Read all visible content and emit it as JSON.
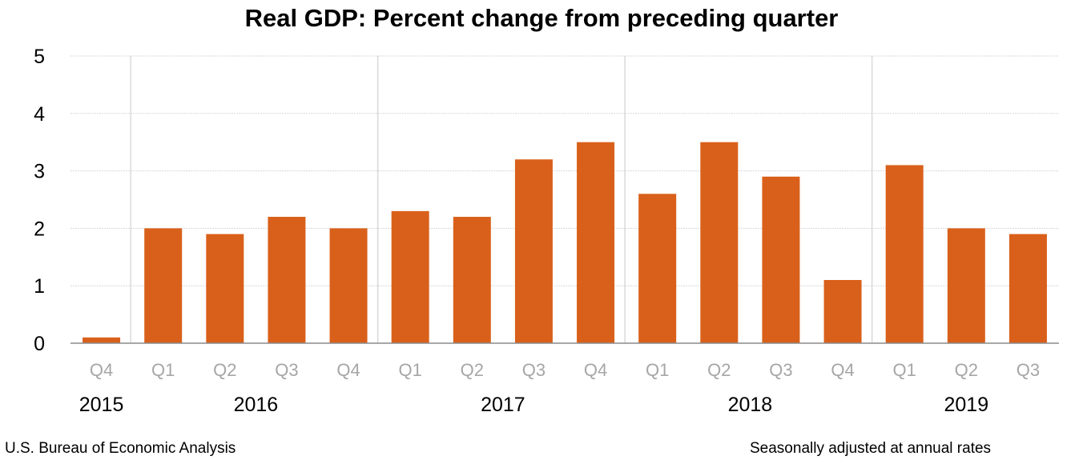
{
  "chart_data": {
    "type": "bar",
    "title": "Real GDP:  Percent change from preceding quarter",
    "categories": [
      "Q4",
      "Q1",
      "Q2",
      "Q3",
      "Q4",
      "Q1",
      "Q2",
      "Q3",
      "Q4",
      "Q1",
      "Q2",
      "Q3",
      "Q4",
      "Q1",
      "Q2",
      "Q3"
    ],
    "years": [
      {
        "label": "2015",
        "quarters": 1
      },
      {
        "label": "2016",
        "quarters": 4
      },
      {
        "label": "2017",
        "quarters": 4
      },
      {
        "label": "2018",
        "quarters": 4
      },
      {
        "label": "2019",
        "quarters": 3
      }
    ],
    "values": [
      0.1,
      2.0,
      1.9,
      2.2,
      2.0,
      2.3,
      2.2,
      3.2,
      3.5,
      2.6,
      3.5,
      2.9,
      1.1,
      3.1,
      2.0,
      1.9
    ],
    "yticks": [
      "0",
      "1",
      "2",
      "3",
      "4",
      "5"
    ],
    "ylim": [
      0,
      5
    ],
    "grid": true,
    "bar_color": "#d9601a",
    "xlabel": "",
    "ylabel": ""
  },
  "footer": {
    "source": "U.S. Bureau of Economic Analysis",
    "note": "Seasonally adjusted at annual rates"
  }
}
